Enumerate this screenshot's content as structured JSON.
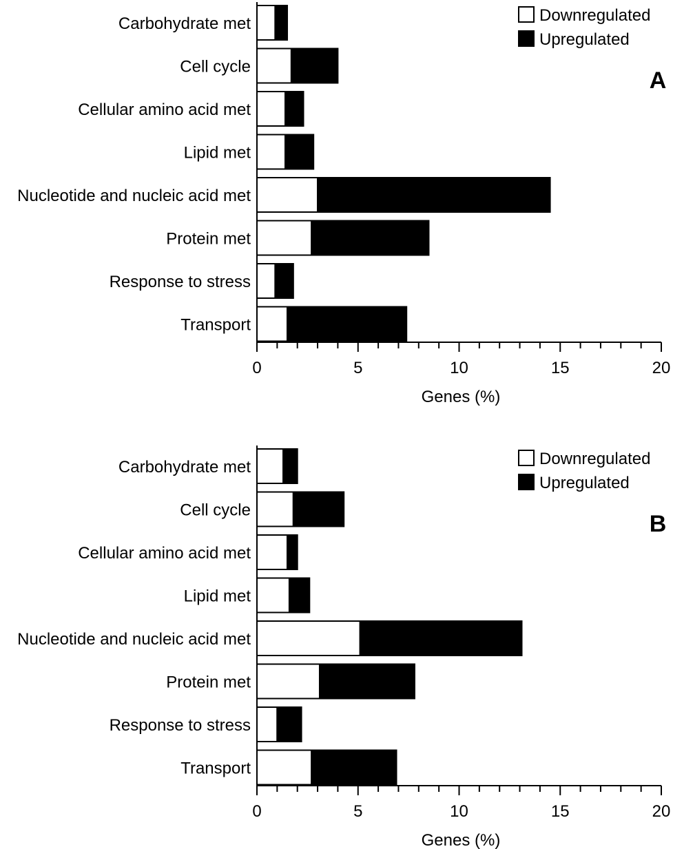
{
  "chart_data": [
    {
      "type": "bar",
      "orientation": "horizontal",
      "stacked": true,
      "panel_label": "A",
      "categories": [
        "Carbohydrate met",
        "Cell cycle",
        "Cellular amino acid met",
        "Lipid met",
        "Nucleotide and nucleic acid met",
        "Protein met",
        "Response to stress",
        "Transport"
      ],
      "series": [
        {
          "name": "Downregulated",
          "color": "#ffffff",
          "values": [
            0.9,
            1.7,
            1.4,
            1.4,
            3.0,
            2.7,
            0.9,
            1.5
          ]
        },
        {
          "name": "Upregulated",
          "color": "#000000",
          "values": [
            0.6,
            2.3,
            0.9,
            1.4,
            11.5,
            5.8,
            0.9,
            5.9
          ]
        }
      ],
      "xlabel": "Genes (%)",
      "xlim": [
        0,
        20
      ],
      "xticks": [
        "0",
        "5",
        "10",
        "15",
        "20"
      ],
      "legend_position": "top-right",
      "grid": false
    },
    {
      "type": "bar",
      "orientation": "horizontal",
      "stacked": true,
      "panel_label": "B",
      "categories": [
        "Carbohydrate met",
        "Cell cycle",
        "Cellular amino acid met",
        "Lipid met",
        "Nucleotide and nucleic acid met",
        "Protein met",
        "Response to stress",
        "Transport"
      ],
      "series": [
        {
          "name": "Downregulated",
          "color": "#ffffff",
          "values": [
            1.3,
            1.8,
            1.5,
            1.6,
            5.1,
            3.1,
            1.0,
            2.7
          ]
        },
        {
          "name": "Upregulated",
          "color": "#000000",
          "values": [
            0.7,
            2.5,
            0.5,
            1.0,
            8.0,
            4.7,
            1.2,
            4.2
          ]
        }
      ],
      "xlabel": "Genes (%)",
      "xlim": [
        0,
        20
      ],
      "xticks": [
        "0",
        "5",
        "10",
        "15",
        "20"
      ],
      "legend_position": "top-right",
      "grid": false
    }
  ]
}
